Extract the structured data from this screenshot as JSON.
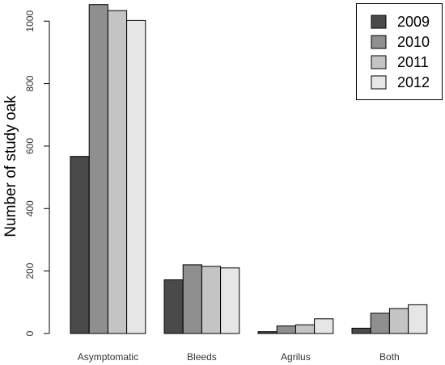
{
  "chart_data": {
    "type": "bar",
    "categories": [
      "Asymptomatic",
      "Bleeds",
      "Agrilus",
      "Both"
    ],
    "series": [
      {
        "name": "2009",
        "values": [
          567,
          172,
          6,
          17
        ],
        "color": "#4a4a4a"
      },
      {
        "name": "2010",
        "values": [
          1053,
          220,
          24,
          65
        ],
        "color": "#8f8f8f"
      },
      {
        "name": "2011",
        "values": [
          1034,
          215,
          28,
          80
        ],
        "color": "#c4c4c4"
      },
      {
        "name": "2012",
        "values": [
          1002,
          210,
          47,
          92
        ],
        "color": "#e6e6e6"
      }
    ],
    "title": "",
    "xlabel": "",
    "ylabel": "Number of study oak",
    "ylim": [
      0,
      1060
    ],
    "yticks": [
      0,
      200,
      400,
      600,
      800,
      1000
    ],
    "grid": false,
    "legend_position": "top-right"
  }
}
